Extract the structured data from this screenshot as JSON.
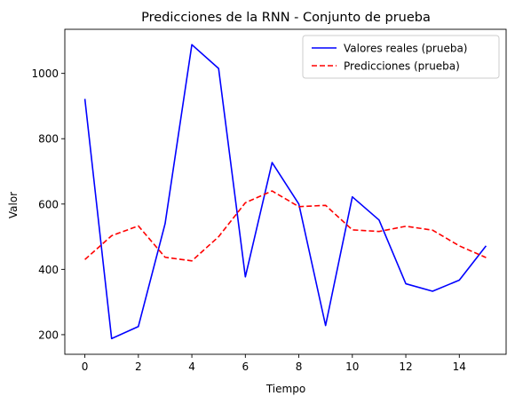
{
  "chart_data": {
    "type": "line",
    "title": "Predicciones de la RNN - Conjunto de prueba",
    "xlabel": "Tiempo",
    "ylabel": "Valor",
    "xlim": [
      -0.75,
      15.75
    ],
    "ylim": [
      140,
      1135
    ],
    "xticks": [
      0,
      2,
      4,
      6,
      8,
      10,
      12,
      14
    ],
    "yticks": [
      200,
      400,
      600,
      800,
      1000
    ],
    "grid": false,
    "legend_position": "top-right",
    "x": [
      0,
      1,
      2,
      3,
      4,
      5,
      6,
      7,
      8,
      9,
      10,
      11,
      12,
      13,
      14,
      15
    ],
    "series": [
      {
        "name": "Valores reales (prueba)",
        "color": "#0000ff",
        "style": "solid",
        "values": [
          922,
          188,
          225,
          540,
          1088,
          1015,
          377,
          727,
          600,
          228,
          622,
          551,
          356,
          333,
          367,
          472
        ]
      },
      {
        "name": "Predicciones (prueba)",
        "color": "#ff0000",
        "style": "dashed",
        "values": [
          430,
          503,
          533,
          437,
          426,
          500,
          604,
          640,
          592,
          596,
          521,
          516,
          532,
          520,
          472,
          436
        ]
      }
    ]
  }
}
